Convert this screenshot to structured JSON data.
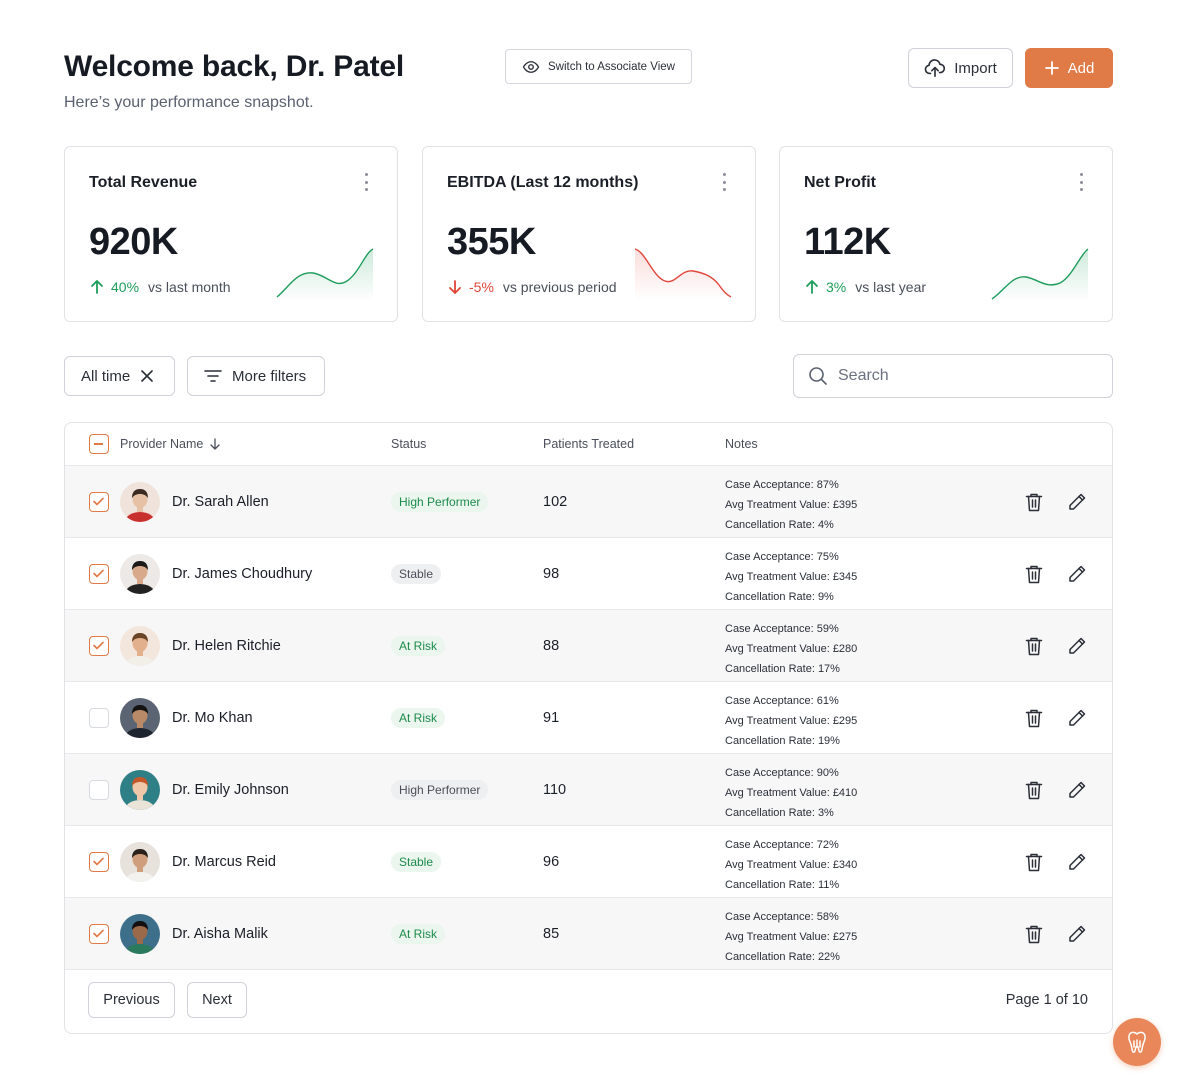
{
  "header": {
    "welcome": "Welcome back, Dr. Patel",
    "subtitle": "Here’s your performance snapshot.",
    "switch_view": "Switch to Associate View",
    "import": "Import",
    "add": "Add"
  },
  "colors": {
    "accent": "#e07a46",
    "positive": "#1e9d5b",
    "negative": "#e0463b"
  },
  "cards": [
    {
      "title": "Total Revenue",
      "value": "920K",
      "direction": "up",
      "pct": "40%",
      "label": "vs last month"
    },
    {
      "title": "EBITDA (Last 12 months)",
      "value": "355K",
      "direction": "down",
      "pct": "-5%",
      "label": "vs previous period"
    },
    {
      "title": "Net Profit",
      "value": "112K",
      "direction": "up",
      "pct": "3%",
      "label": "vs last year"
    }
  ],
  "filters": {
    "time_chip": "All time",
    "more_filters": "More filters",
    "search_placeholder": "Search"
  },
  "table": {
    "columns": {
      "provider": "Provider Name",
      "status": "Status",
      "patients": "Patients Treated",
      "notes": "Notes"
    },
    "rows": [
      {
        "name": "Dr. Sarah Allen",
        "checked": true,
        "status": "High Performer",
        "status_tone": "green",
        "patients": "102",
        "notes": [
          "Case Acceptance: 87%",
          "Avg Treatment Value: £395",
          "Cancellation Rate: 4%"
        ]
      },
      {
        "name": "Dr. James Choudhury",
        "checked": true,
        "status": "Stable",
        "status_tone": "gray",
        "patients": "98",
        "notes": [
          "Case Acceptance: 75%",
          "Avg Treatment Value: £345",
          "Cancellation Rate: 9%"
        ]
      },
      {
        "name": "Dr. Helen Ritchie",
        "checked": true,
        "status": "At Risk",
        "status_tone": "green",
        "patients": "88",
        "notes": [
          "Case Acceptance: 59%",
          "Avg Treatment Value: £280",
          "Cancellation Rate: 17%"
        ]
      },
      {
        "name": "Dr. Mo Khan",
        "checked": false,
        "status": "At Risk",
        "status_tone": "green",
        "patients": "91",
        "notes": [
          "Case Acceptance: 61%",
          "Avg Treatment Value: £295",
          "Cancellation Rate: 19%"
        ]
      },
      {
        "name": "Dr. Emily Johnson",
        "checked": false,
        "status": "High Performer",
        "status_tone": "gray",
        "patients": "110",
        "notes": [
          "Case Acceptance: 90%",
          "Avg Treatment Value: £410",
          "Cancellation Rate: 3%"
        ]
      },
      {
        "name": "Dr. Marcus Reid",
        "checked": true,
        "status": "Stable",
        "status_tone": "green",
        "patients": "96",
        "notes": [
          "Case Acceptance: 72%",
          "Avg Treatment Value: £340",
          "Cancellation Rate: 11%"
        ]
      },
      {
        "name": "Dr. Aisha Malik",
        "checked": true,
        "status": "At Risk",
        "status_tone": "green",
        "patients": "85",
        "notes": [
          "Case Acceptance: 58%",
          "Avg Treatment Value: £275",
          "Cancellation Rate: 22%"
        ]
      }
    ]
  },
  "pagination": {
    "previous": "Previous",
    "next": "Next",
    "info": "Page 1 of 10"
  },
  "icons": {
    "switch": "eye-icon",
    "import": "cloud-upload-icon",
    "add": "plus-icon",
    "search": "search-icon",
    "filter": "filter-lines-icon",
    "remove": "close-icon",
    "sort": "arrow-down-icon",
    "delete": "trash-icon",
    "edit": "pencil-icon",
    "fab": "tooth-icon"
  }
}
